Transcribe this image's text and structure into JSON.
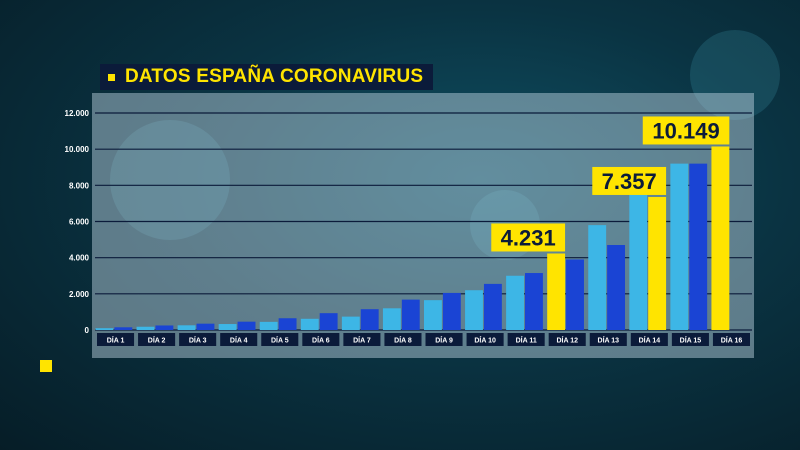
{
  "title": "DATOS ESPAÑA CORONAVIRUS",
  "colors": {
    "light_blue": "#3db6e6",
    "dark_blue": "#1a44d4",
    "yellow": "#ffe400",
    "navy": "#0b1b3a"
  },
  "chart_data": {
    "type": "bar",
    "title": "DATOS ESPAÑA CORONAVIRUS",
    "xlabel": "",
    "ylabel": "",
    "ylim": [
      0,
      12000
    ],
    "yticks": [
      "0",
      "2.000",
      "4.000",
      "6.000",
      "8.000",
      "10.000",
      "12.000"
    ],
    "ytick_values": [
      0,
      2000,
      4000,
      6000,
      8000,
      10000,
      12000
    ],
    "grid": true,
    "categories": [
      "DÍA 1",
      "DÍA 2",
      "DÍA 3",
      "DÍA 4",
      "DÍA 5",
      "DÍA 6",
      "DÍA 7",
      "DÍA 8",
      "DÍA 9",
      "DÍA 10",
      "DÍA 11",
      "DÍA 12",
      "DÍA 13",
      "DÍA 14",
      "DÍA 15",
      "DÍA 16"
    ],
    "series": [
      {
        "color": "#3db6e6",
        "values": [
          100,
          180,
          260,
          330,
          450,
          620,
          740,
          1200,
          1650,
          2200,
          3000,
          4231,
          5800,
          7800,
          9200,
          10149
        ]
      },
      {
        "color": "#1a44d4",
        "values": [
          150,
          250,
          350,
          460,
          650,
          930,
          1150,
          1680,
          2050,
          2550,
          3150,
          3900,
          4700,
          7357,
          9200,
          null
        ]
      }
    ],
    "highlights": [
      {
        "category": "DÍA 12",
        "series": 0,
        "value": 4231,
        "label": "4.231"
      },
      {
        "category": "DÍA 14",
        "series": 1,
        "value": 7357,
        "label": "7.357"
      },
      {
        "category": "DÍA 16",
        "series": 0,
        "value": 10149,
        "label": "10.149"
      }
    ]
  }
}
